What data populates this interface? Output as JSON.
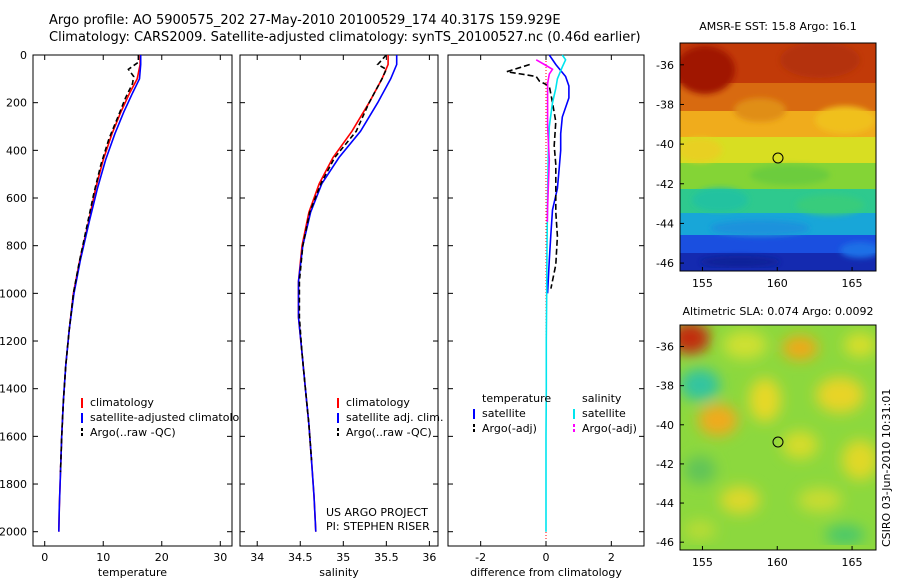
{
  "header": {
    "line1": "Argo profile: AO 5900575_202 27-May-2010 20100529_174 40.317S 159.929E",
    "line2": "Climatology: CARS2009. Satellite-adjusted climatology: synTS_20100527.nc (0.46d earlier)"
  },
  "colors": {
    "climatology": "#ff0000",
    "satellite": "#0000ff",
    "argo": "#000000",
    "sal_satellite": "#00e5ee",
    "sal_argo": "#ff00ff"
  },
  "credit": "US ARGO PROJECT",
  "pi": "PI: STEPHEN RISER",
  "timestamp": "CSIRO 03-Jun-2010 10:31:01",
  "chart_data": [
    {
      "type": "line",
      "id": "temperature",
      "xlabel": "temperature",
      "ylabel": "",
      "xlim": [
        -2,
        32
      ],
      "ylim": [
        2060,
        0
      ],
      "xticks": [
        0,
        10,
        20,
        30
      ],
      "yticks": [
        0,
        200,
        400,
        600,
        800,
        1000,
        1200,
        1400,
        1600,
        1800,
        2000
      ],
      "legend": [
        "climatology",
        "satellite-adjusted climatology",
        "Argo(..raw -QC)"
      ],
      "series": [
        {
          "name": "climatology",
          "color": "red",
          "dash": "",
          "points": [
            [
              16.3,
              0
            ],
            [
              16.3,
              40
            ],
            [
              15.8,
              100
            ],
            [
              14.5,
              160
            ],
            [
              13,
              240
            ],
            [
              11.5,
              330
            ],
            [
              10,
              440
            ],
            [
              8.7,
              560
            ],
            [
              7.5,
              700
            ],
            [
              6,
              860
            ],
            [
              4.9,
              1000
            ],
            [
              4.2,
              1150
            ],
            [
              3.6,
              1300
            ],
            [
              3.2,
              1450
            ],
            [
              2.9,
              1600
            ],
            [
              2.7,
              1750
            ],
            [
              2.5,
              1900
            ],
            [
              2.4,
              2000
            ]
          ]
        },
        {
          "name": "satellite-adjusted climatology",
          "color": "blue",
          "dash": "",
          "points": [
            [
              16.4,
              0
            ],
            [
              16.4,
              40
            ],
            [
              16.2,
              100
            ],
            [
              15,
              160
            ],
            [
              13.5,
              240
            ],
            [
              12,
              330
            ],
            [
              10.4,
              440
            ],
            [
              9,
              560
            ],
            [
              7.6,
              700
            ],
            [
              6.1,
              860
            ],
            [
              5,
              1000
            ],
            [
              4.2,
              1150
            ],
            [
              3.6,
              1300
            ],
            [
              3.2,
              1450
            ],
            [
              2.9,
              1600
            ],
            [
              2.7,
              1750
            ],
            [
              2.5,
              1900
            ],
            [
              2.4,
              2000
            ]
          ]
        },
        {
          "name": "Argo(..raw -QC)",
          "color": "black",
          "dash": "5,3",
          "points": [
            [
              16,
              0
            ],
            [
              16,
              30
            ],
            [
              14.3,
              60
            ],
            [
              15.2,
              90
            ],
            [
              15,
              120
            ],
            [
              13.8,
              180
            ],
            [
              12.5,
              260
            ],
            [
              11,
              350
            ],
            [
              9.6,
              460
            ],
            [
              8.4,
              580
            ],
            [
              7.2,
              720
            ],
            [
              5.9,
              870
            ],
            [
              4.9,
              1000
            ],
            [
              4.2,
              1150
            ],
            [
              3.6,
              1300
            ],
            [
              3.2,
              1450
            ],
            [
              2.9,
              1600
            ],
            [
              2.7,
              1750
            ]
          ]
        }
      ]
    },
    {
      "type": "line",
      "id": "salinity",
      "xlabel": "salinity",
      "ylabel": "",
      "xlim": [
        33.8,
        36.1
      ],
      "ylim": [
        2060,
        0
      ],
      "xticks": [
        34,
        34.5,
        35,
        35.5,
        36
      ],
      "xticklabels": [
        "34",
        "34.5",
        "35",
        "35.5",
        "36"
      ],
      "yticks": [
        0,
        200,
        400,
        600,
        800,
        1000,
        1200,
        1400,
        1600,
        1800,
        2000
      ],
      "legend": [
        "climatology",
        "satellite adj. clim.",
        "Argo(..raw -QC)"
      ],
      "series": [
        {
          "name": "climatology",
          "color": "red",
          "dash": "",
          "points": [
            [
              35.52,
              0
            ],
            [
              35.52,
              40
            ],
            [
              35.45,
              100
            ],
            [
              35.3,
              200
            ],
            [
              35.1,
              320
            ],
            [
              34.88,
              430
            ],
            [
              34.72,
              540
            ],
            [
              34.6,
              660
            ],
            [
              34.52,
              800
            ],
            [
              34.48,
              950
            ],
            [
              34.48,
              1100
            ],
            [
              34.52,
              1250
            ],
            [
              34.56,
              1400
            ],
            [
              34.6,
              1550
            ],
            [
              34.63,
              1700
            ],
            [
              34.66,
              1850
            ],
            [
              34.68,
              2000
            ]
          ]
        },
        {
          "name": "satellite adj. clim.",
          "color": "blue",
          "dash": "",
          "points": [
            [
              35.62,
              0
            ],
            [
              35.62,
              40
            ],
            [
              35.55,
              100
            ],
            [
              35.4,
              200
            ],
            [
              35.2,
              320
            ],
            [
              34.95,
              430
            ],
            [
              34.75,
              540
            ],
            [
              34.62,
              660
            ],
            [
              34.53,
              800
            ],
            [
              34.48,
              950
            ],
            [
              34.48,
              1100
            ],
            [
              34.52,
              1250
            ],
            [
              34.56,
              1400
            ],
            [
              34.6,
              1550
            ],
            [
              34.63,
              1700
            ],
            [
              34.66,
              1850
            ],
            [
              34.68,
              2000
            ]
          ]
        },
        {
          "name": "Argo(..raw -QC)",
          "color": "black",
          "dash": "5,3",
          "points": [
            [
              35.5,
              0
            ],
            [
              35.4,
              40
            ],
            [
              35.5,
              60
            ],
            [
              35.45,
              100
            ],
            [
              35.3,
              200
            ],
            [
              35.15,
              320
            ],
            [
              34.9,
              430
            ],
            [
              34.74,
              540
            ],
            [
              34.61,
              660
            ],
            [
              34.53,
              800
            ],
            [
              34.49,
              950
            ],
            [
              34.49,
              1100
            ],
            [
              34.52,
              1250
            ],
            [
              34.56,
              1400
            ],
            [
              34.6,
              1550
            ],
            [
              34.63,
              1700
            ]
          ]
        }
      ]
    },
    {
      "type": "line",
      "id": "difference",
      "xlabel": "difference from climatology",
      "ylabel": "",
      "xlim": [
        -3,
        3
      ],
      "ylim": [
        2060,
        0
      ],
      "xticks": [
        -2,
        0,
        2
      ],
      "yticks": [
        0,
        200,
        400,
        600,
        800,
        1000,
        1200,
        1400,
        1600,
        1800,
        2000
      ],
      "legend_headings": [
        "temperature",
        "salinity"
      ],
      "legend": [
        "satellite",
        "Argo(-adj)",
        "satellite",
        "Argo(-adj)"
      ],
      "series": [
        {
          "name": "temperature satellite",
          "color": "blue",
          "dash": "",
          "points": [
            [
              0.1,
              0
            ],
            [
              0.3,
              40
            ],
            [
              0.6,
              90
            ],
            [
              0.7,
              130
            ],
            [
              0.7,
              180
            ],
            [
              0.5,
              260
            ],
            [
              0.45,
              330
            ],
            [
              0.45,
              400
            ],
            [
              0.4,
              480
            ],
            [
              0.35,
              560
            ],
            [
              0.2,
              650
            ],
            [
              0.15,
              750
            ],
            [
              0.1,
              860
            ],
            [
              0.05,
              1000
            ]
          ]
        },
        {
          "name": "temperature Argo(-adj)",
          "color": "black",
          "dash": "6,3",
          "points": [
            [
              -0.5,
              40
            ],
            [
              -1.2,
              70
            ],
            [
              -0.3,
              90
            ],
            [
              -0.2,
              110
            ],
            [
              0.1,
              130
            ],
            [
              0.2,
              200
            ],
            [
              0.3,
              280
            ],
            [
              0.25,
              380
            ],
            [
              0.3,
              460
            ],
            [
              0.3,
              560
            ],
            [
              0.3,
              660
            ],
            [
              0.35,
              760
            ],
            [
              0.3,
              880
            ],
            [
              0.15,
              980
            ]
          ]
        },
        {
          "name": "salinity satellite",
          "color": "cyan",
          "dash": "",
          "points": [
            [
              0.5,
              0
            ],
            [
              0.6,
              20
            ],
            [
              0.5,
              50
            ],
            [
              0.35,
              100
            ],
            [
              0.3,
              140
            ],
            [
              0.2,
              200
            ],
            [
              0.1,
              300
            ],
            [
              0.07,
              400
            ],
            [
              0.05,
              600
            ],
            [
              0.03,
              800
            ],
            [
              0.02,
              1000
            ],
            [
              0.01,
              1200
            ],
            [
              0.01,
              1400
            ],
            [
              0,
              1600
            ],
            [
              0,
              1800
            ],
            [
              0,
              2000
            ]
          ]
        },
        {
          "name": "salinity Argo(-adj)",
          "color": "magenta",
          "dash": "",
          "points": [
            [
              -0.3,
              20
            ],
            [
              -0.05,
              40
            ],
            [
              0.2,
              60
            ],
            [
              0.1,
              80
            ],
            [
              0.05,
              120
            ],
            [
              0.05,
              300
            ],
            [
              0.1,
              440
            ],
            [
              0.05,
              640
            ],
            [
              0.04,
              700
            ]
          ]
        }
      ]
    },
    {
      "type": "heatmap",
      "id": "sst_map",
      "title": "AMSR-E SST: 15.8 Argo: 16.1",
      "xlim": [
        153.5,
        166.6
      ],
      "ylim": [
        -46.4,
        -34.9
      ],
      "xticks": [
        155,
        160,
        165
      ],
      "yticks": [
        -36,
        -38,
        -40,
        -42,
        -44,
        -46
      ],
      "marker": {
        "lon": 159.929,
        "lat": -40.317
      }
    },
    {
      "type": "heatmap",
      "id": "sla_map",
      "title": "Altimetric SLA: 0.074 Argo: 0.0092",
      "xlim": [
        153.5,
        166.6
      ],
      "ylim": [
        -46.4,
        -34.9
      ],
      "xticks": [
        155,
        160,
        165
      ],
      "yticks": [
        -36,
        -38,
        -40,
        -42,
        -44,
        -46
      ],
      "marker": {
        "lon": 159.929,
        "lat": -40.317
      }
    }
  ]
}
